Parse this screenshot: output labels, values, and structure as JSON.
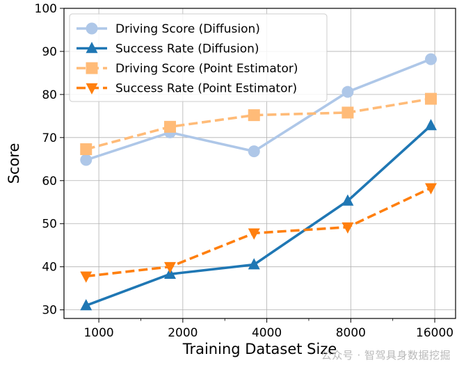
{
  "chart_data": {
    "type": "line",
    "title": "",
    "xlabel": "Training Dataset Size",
    "ylabel": "Score",
    "xscale": "log2",
    "x": [
      900,
      1800,
      3600,
      7800,
      15500
    ],
    "xticks": [
      1000,
      2000,
      4000,
      8000,
      16000
    ],
    "xtick_labels": [
      "1000",
      "2000",
      "4000",
      "8000",
      "16000"
    ],
    "xlim": [
      750,
      19000
    ],
    "ylim": [
      28,
      100
    ],
    "yticks": [
      30,
      40,
      50,
      60,
      70,
      80,
      90,
      100
    ],
    "ytick_labels": [
      "30",
      "40",
      "50",
      "60",
      "70",
      "80",
      "90",
      "100"
    ],
    "grid": true,
    "legend_position": "top-left",
    "series": [
      {
        "name": "Driving Score (Diffusion)",
        "values": [
          64.8,
          71.2,
          66.8,
          80.6,
          88.2
        ],
        "color": "#aec7e8",
        "marker": "circle",
        "linestyle": "solid"
      },
      {
        "name": "Success Rate (Diffusion)",
        "values": [
          31.0,
          38.3,
          40.5,
          55.3,
          72.8
        ],
        "color": "#1f77b4",
        "marker": "triangle-up",
        "linestyle": "solid"
      },
      {
        "name": "Driving Score (Point Estimator)",
        "values": [
          67.3,
          72.5,
          75.2,
          75.8,
          79.0
        ],
        "color": "#ffbb78",
        "marker": "square",
        "linestyle": "dashed"
      },
      {
        "name": "Success Rate (Point Estimator)",
        "values": [
          37.8,
          40.0,
          47.8,
          49.2,
          58.3
        ],
        "color": "#ff7f0e",
        "marker": "triangle-down",
        "linestyle": "dashed"
      }
    ]
  },
  "watermark": "公众号 · 智驾具身数据挖掘"
}
